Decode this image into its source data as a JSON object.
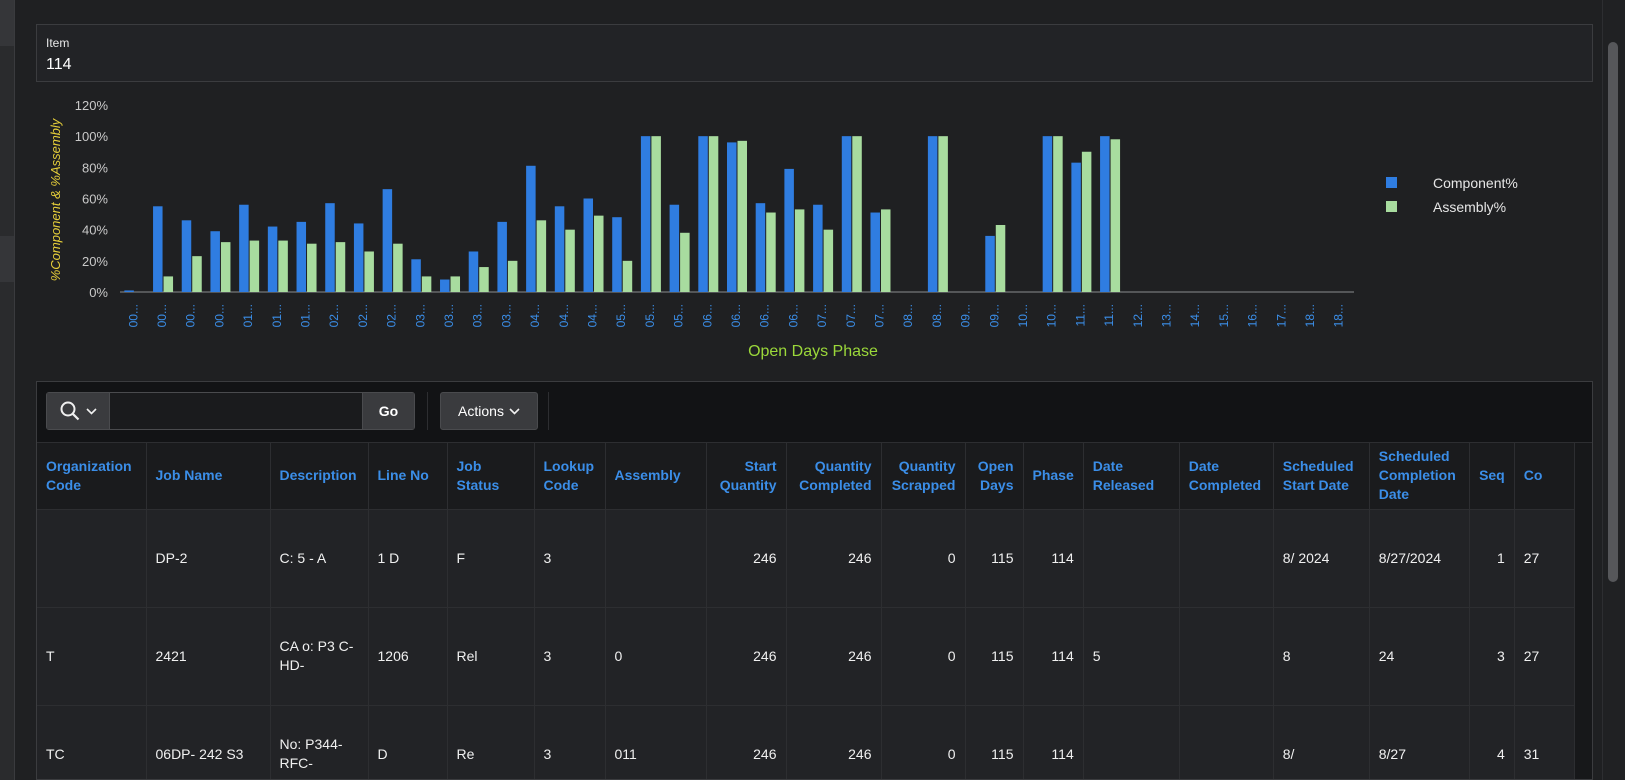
{
  "item_region": {
    "label": "Item",
    "value": "114"
  },
  "chart_data": {
    "type": "bar",
    "ylabel": "%Component & %Assembly",
    "xlabel": "Open Days Phase",
    "y_ticks": [
      "0%",
      "20%",
      "40%",
      "60%",
      "80%",
      "100%",
      "120%"
    ],
    "ylim": [
      0,
      120
    ],
    "categories": [
      "00...",
      "00...",
      "00...",
      "00...",
      "01...",
      "01...",
      "01...",
      "02...",
      "02...",
      "02...",
      "03...",
      "03...",
      "03...",
      "03...",
      "04...",
      "04...",
      "04...",
      "05...",
      "05...",
      "05...",
      "06...",
      "06...",
      "06...",
      "06...",
      "07...",
      "07...",
      "07...",
      "08...",
      "08...",
      "09...",
      "09...",
      "10...",
      "10...",
      "11...",
      "11...",
      "12...",
      "13...",
      "14...",
      "15...",
      "16...",
      "17...",
      "18...",
      "18..."
    ],
    "series": [
      {
        "name": "Component%",
        "color": "#2f7de1",
        "values": [
          1,
          55,
          46,
          39,
          56,
          42,
          45,
          57,
          44,
          66,
          21,
          8,
          26,
          45,
          81,
          55,
          60,
          48,
          100,
          56,
          100,
          96,
          57,
          79,
          56,
          100,
          51,
          0,
          100,
          0,
          36,
          0,
          100,
          83,
          100,
          0,
          0,
          0,
          0,
          0,
          0,
          0,
          0
        ]
      },
      {
        "name": "Assembly%",
        "color": "#a8dc9f",
        "values": [
          0,
          10,
          23,
          32,
          33,
          33,
          31,
          32,
          26,
          31,
          10,
          10,
          16,
          20,
          46,
          40,
          49,
          20,
          100,
          38,
          100,
          97,
          51,
          53,
          40,
          100,
          53,
          0,
          100,
          0,
          43,
          0,
          100,
          90,
          98,
          0,
          0,
          0,
          0,
          0,
          0,
          0,
          0
        ]
      }
    ],
    "legend": [
      "Component%",
      "Assembly%"
    ],
    "legend_position": "right"
  },
  "toolbar": {
    "search_placeholder": "",
    "go_label": "Go",
    "actions_label": "Actions"
  },
  "table": {
    "columns": [
      {
        "label": "Organization Code",
        "align": "left"
      },
      {
        "label": "Job Name",
        "align": "left"
      },
      {
        "label": "Description",
        "align": "left"
      },
      {
        "label": "Line No",
        "align": "left"
      },
      {
        "label": "Job Status",
        "align": "left"
      },
      {
        "label": "Lookup Code",
        "align": "left"
      },
      {
        "label": "Assembly",
        "align": "left"
      },
      {
        "label": "Start Quantity",
        "align": "right"
      },
      {
        "label": "Quantity Completed",
        "align": "right"
      },
      {
        "label": "Quantity Scrapped",
        "align": "right"
      },
      {
        "label": "Open Days",
        "align": "right"
      },
      {
        "label": "Phase",
        "align": "right"
      },
      {
        "label": "Date Released",
        "align": "left"
      },
      {
        "label": "Date Completed",
        "align": "left"
      },
      {
        "label": "Scheduled Start Date",
        "align": "left"
      },
      {
        "label": "Scheduled Completion Date",
        "align": "left"
      },
      {
        "label": "Seq",
        "align": "right"
      },
      {
        "label": "Co",
        "align": "left"
      }
    ],
    "rows": [
      [
        "",
        "DP-2",
        "C: 5 - A",
        "1 D",
        "F",
        "3",
        "",
        "246",
        "246",
        "0",
        "115",
        "114",
        "",
        "",
        "8/ 2024",
        "8/27/2024",
        "1",
        "27"
      ],
      [
        "T",
        "2421",
        "CA o: P3 C- HD-",
        "1206",
        "Rel",
        "3",
        "0",
        "246",
        "246",
        "0",
        "115",
        "114",
        "5",
        "",
        "8",
        "24",
        "3",
        "27"
      ],
      [
        "TC",
        "06DP- 242 S3",
        "No: P344-RFC-",
        "D",
        "Re",
        "3",
        "011",
        "246",
        "246",
        "0",
        "115",
        "114",
        "",
        "",
        "8/",
        "8/27",
        "4",
        "31"
      ]
    ]
  }
}
